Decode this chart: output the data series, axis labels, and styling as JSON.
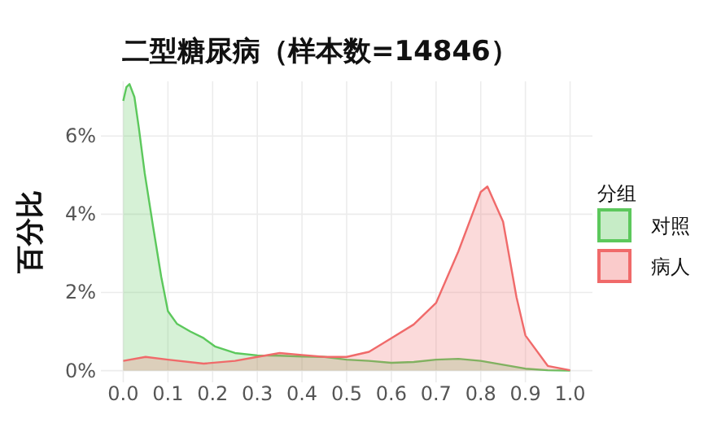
{
  "chart_data": {
    "type": "area",
    "title": "二型糖尿病（样本数=14846）",
    "ylabel": "百分比",
    "legend_title": "分组",
    "legend": "right",
    "grid": true,
    "xlim": [
      -0.05,
      1.05
    ],
    "ylim": [
      -0.3,
      7.4
    ],
    "xticks": [
      {
        "value": 0,
        "label": "0.0"
      },
      {
        "value": 0.1,
        "label": "0.1"
      },
      {
        "value": 0.2,
        "label": "0.2"
      },
      {
        "value": 0.3,
        "label": "0.3"
      },
      {
        "value": 0.4,
        "label": "0.4"
      },
      {
        "value": 0.5,
        "label": "0.5"
      },
      {
        "value": 0.6,
        "label": "0.6"
      },
      {
        "value": 0.7,
        "label": "0.7"
      },
      {
        "value": 0.8,
        "label": "0.8"
      },
      {
        "value": 0.9,
        "label": "0.9"
      },
      {
        "value": 1,
        "label": "1.0"
      }
    ],
    "yticks": [
      {
        "value": 0,
        "label": "0%"
      },
      {
        "value": 2,
        "label": "2%"
      },
      {
        "value": 4,
        "label": "4%"
      },
      {
        "value": 6,
        "label": "6%"
      }
    ],
    "series": [
      {
        "name": "对照",
        "color": "#5cc85c",
        "x": [
          0,
          0.007,
          0.014,
          0.025,
          0.035,
          0.048,
          0.067,
          0.085,
          0.1,
          0.12,
          0.15,
          0.18,
          0.205,
          0.25,
          0.3,
          0.35,
          0.4,
          0.45,
          0.5,
          0.55,
          0.6,
          0.65,
          0.7,
          0.75,
          0.8,
          0.85,
          0.9,
          0.95,
          1.0
        ],
        "values": [
          6.9,
          7.25,
          7.33,
          7.0,
          6.2,
          5.05,
          3.67,
          2.4,
          1.52,
          1.2,
          1.0,
          0.83,
          0.62,
          0.45,
          0.39,
          0.38,
          0.36,
          0.35,
          0.28,
          0.25,
          0.2,
          0.22,
          0.28,
          0.3,
          0.25,
          0.15,
          0.05,
          0.01,
          0
        ]
      },
      {
        "name": "病人",
        "color": "#f06a6a",
        "x": [
          0,
          0.05,
          0.1,
          0.18,
          0.25,
          0.3,
          0.35,
          0.4,
          0.45,
          0.5,
          0.55,
          0.6,
          0.65,
          0.7,
          0.75,
          0.8,
          0.815,
          0.85,
          0.88,
          0.9,
          0.95,
          1.0
        ],
        "values": [
          0.25,
          0.35,
          0.28,
          0.18,
          0.25,
          0.35,
          0.45,
          0.4,
          0.35,
          0.35,
          0.48,
          0.83,
          1.18,
          1.73,
          3.05,
          4.57,
          4.71,
          3.81,
          1.88,
          0.9,
          0.12,
          0.01
        ]
      }
    ]
  }
}
